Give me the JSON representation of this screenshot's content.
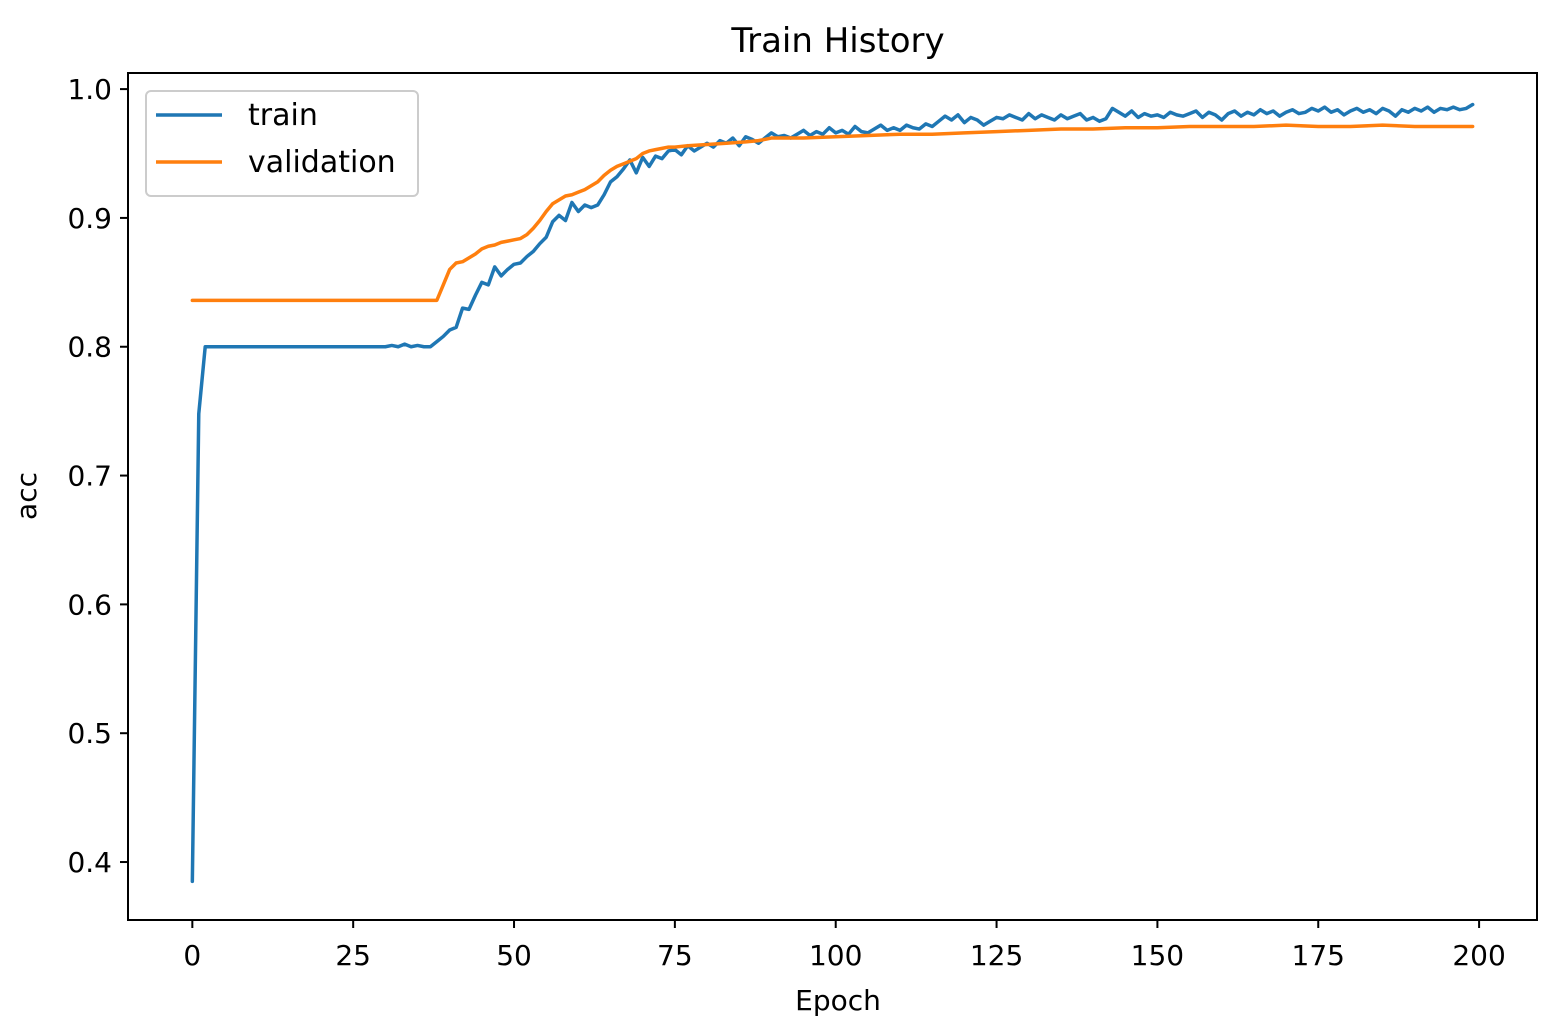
{
  "chart_data": {
    "type": "line",
    "title": "Train History",
    "xlabel": "Epoch",
    "ylabel": "acc",
    "xlim": [
      -10,
      209
    ],
    "ylim": [
      0.355,
      1.0125
    ],
    "xticks": [
      0,
      25,
      50,
      75,
      100,
      125,
      150,
      175,
      200
    ],
    "yticks": [
      0.4,
      0.5,
      0.6,
      0.7,
      0.8,
      0.9,
      1.0
    ],
    "ytick_labels": [
      "0.4",
      "0.5",
      "0.6",
      "0.7",
      "0.8",
      "0.9",
      "1.0"
    ],
    "grid": false,
    "legend_position": "top-left",
    "series": [
      {
        "name": "train",
        "color": "#1f77b4",
        "points": [
          [
            0,
            0.385
          ],
          [
            1,
            0.748
          ],
          [
            2,
            0.8
          ],
          [
            5,
            0.8
          ],
          [
            10,
            0.8
          ],
          [
            15,
            0.8
          ],
          [
            20,
            0.8
          ],
          [
            25,
            0.8
          ],
          [
            30,
            0.8
          ],
          [
            31,
            0.801
          ],
          [
            32,
            0.8
          ],
          [
            33,
            0.802
          ],
          [
            34,
            0.8
          ],
          [
            35,
            0.801
          ],
          [
            36,
            0.8
          ],
          [
            37,
            0.8
          ],
          [
            38,
            0.804
          ],
          [
            39,
            0.808
          ],
          [
            40,
            0.813
          ],
          [
            41,
            0.815
          ],
          [
            42,
            0.83
          ],
          [
            43,
            0.829
          ],
          [
            44,
            0.84
          ],
          [
            45,
            0.85
          ],
          [
            46,
            0.848
          ],
          [
            47,
            0.862
          ],
          [
            48,
            0.855
          ],
          [
            49,
            0.86
          ],
          [
            50,
            0.864
          ],
          [
            51,
            0.865
          ],
          [
            52,
            0.87
          ],
          [
            53,
            0.874
          ],
          [
            54,
            0.88
          ],
          [
            55,
            0.885
          ],
          [
            56,
            0.897
          ],
          [
            57,
            0.902
          ],
          [
            58,
            0.898
          ],
          [
            59,
            0.912
          ],
          [
            60,
            0.905
          ],
          [
            61,
            0.91
          ],
          [
            62,
            0.908
          ],
          [
            63,
            0.91
          ],
          [
            64,
            0.918
          ],
          [
            65,
            0.928
          ],
          [
            66,
            0.932
          ],
          [
            67,
            0.938
          ],
          [
            68,
            0.945
          ],
          [
            69,
            0.935
          ],
          [
            70,
            0.947
          ],
          [
            71,
            0.94
          ],
          [
            72,
            0.948
          ],
          [
            73,
            0.946
          ],
          [
            74,
            0.952
          ],
          [
            75,
            0.953
          ],
          [
            76,
            0.949
          ],
          [
            77,
            0.956
          ],
          [
            78,
            0.952
          ],
          [
            79,
            0.955
          ],
          [
            80,
            0.958
          ],
          [
            81,
            0.955
          ],
          [
            82,
            0.96
          ],
          [
            83,
            0.958
          ],
          [
            84,
            0.962
          ],
          [
            85,
            0.956
          ],
          [
            86,
            0.963
          ],
          [
            87,
            0.961
          ],
          [
            88,
            0.958
          ],
          [
            89,
            0.962
          ],
          [
            90,
            0.966
          ],
          [
            91,
            0.963
          ],
          [
            92,
            0.964
          ],
          [
            93,
            0.962
          ],
          [
            94,
            0.965
          ],
          [
            95,
            0.968
          ],
          [
            96,
            0.964
          ],
          [
            97,
            0.967
          ],
          [
            98,
            0.965
          ],
          [
            99,
            0.97
          ],
          [
            100,
            0.966
          ],
          [
            101,
            0.968
          ],
          [
            102,
            0.965
          ],
          [
            103,
            0.971
          ],
          [
            104,
            0.967
          ],
          [
            105,
            0.966
          ],
          [
            106,
            0.969
          ],
          [
            107,
            0.972
          ],
          [
            108,
            0.968
          ],
          [
            109,
            0.97
          ],
          [
            110,
            0.968
          ],
          [
            111,
            0.972
          ],
          [
            112,
            0.97
          ],
          [
            113,
            0.969
          ],
          [
            114,
            0.973
          ],
          [
            115,
            0.971
          ],
          [
            116,
            0.975
          ],
          [
            117,
            0.979
          ],
          [
            118,
            0.976
          ],
          [
            119,
            0.98
          ],
          [
            120,
            0.974
          ],
          [
            121,
            0.978
          ],
          [
            122,
            0.976
          ],
          [
            123,
            0.972
          ],
          [
            124,
            0.975
          ],
          [
            125,
            0.978
          ],
          [
            126,
            0.977
          ],
          [
            127,
            0.98
          ],
          [
            128,
            0.978
          ],
          [
            129,
            0.976
          ],
          [
            130,
            0.981
          ],
          [
            131,
            0.977
          ],
          [
            132,
            0.98
          ],
          [
            133,
            0.978
          ],
          [
            134,
            0.976
          ],
          [
            135,
            0.98
          ],
          [
            136,
            0.977
          ],
          [
            137,
            0.979
          ],
          [
            138,
            0.981
          ],
          [
            139,
            0.976
          ],
          [
            140,
            0.978
          ],
          [
            141,
            0.975
          ],
          [
            142,
            0.977
          ],
          [
            143,
            0.985
          ],
          [
            144,
            0.982
          ],
          [
            145,
            0.979
          ],
          [
            146,
            0.983
          ],
          [
            147,
            0.978
          ],
          [
            148,
            0.981
          ],
          [
            149,
            0.979
          ],
          [
            150,
            0.98
          ],
          [
            151,
            0.978
          ],
          [
            152,
            0.982
          ],
          [
            153,
            0.98
          ],
          [
            154,
            0.979
          ],
          [
            155,
            0.981
          ],
          [
            156,
            0.983
          ],
          [
            157,
            0.978
          ],
          [
            158,
            0.982
          ],
          [
            159,
            0.98
          ],
          [
            160,
            0.976
          ],
          [
            161,
            0.981
          ],
          [
            162,
            0.983
          ],
          [
            163,
            0.979
          ],
          [
            164,
            0.982
          ],
          [
            165,
            0.98
          ],
          [
            166,
            0.984
          ],
          [
            167,
            0.981
          ],
          [
            168,
            0.983
          ],
          [
            169,
            0.979
          ],
          [
            170,
            0.982
          ],
          [
            171,
            0.984
          ],
          [
            172,
            0.981
          ],
          [
            173,
            0.982
          ],
          [
            174,
            0.985
          ],
          [
            175,
            0.983
          ],
          [
            176,
            0.986
          ],
          [
            177,
            0.982
          ],
          [
            178,
            0.984
          ],
          [
            179,
            0.98
          ],
          [
            180,
            0.983
          ],
          [
            181,
            0.985
          ],
          [
            182,
            0.982
          ],
          [
            183,
            0.984
          ],
          [
            184,
            0.981
          ],
          [
            185,
            0.985
          ],
          [
            186,
            0.983
          ],
          [
            187,
            0.979
          ],
          [
            188,
            0.984
          ],
          [
            189,
            0.982
          ],
          [
            190,
            0.985
          ],
          [
            191,
            0.983
          ],
          [
            192,
            0.986
          ],
          [
            193,
            0.982
          ],
          [
            194,
            0.985
          ],
          [
            195,
            0.984
          ],
          [
            196,
            0.986
          ],
          [
            197,
            0.984
          ],
          [
            198,
            0.985
          ],
          [
            199,
            0.988
          ]
        ]
      },
      {
        "name": "validation",
        "color": "#ff7f0e",
        "points": [
          [
            0,
            0.836
          ],
          [
            10,
            0.836
          ],
          [
            20,
            0.836
          ],
          [
            30,
            0.836
          ],
          [
            37,
            0.836
          ],
          [
            38,
            0.836
          ],
          [
            39,
            0.848
          ],
          [
            40,
            0.86
          ],
          [
            41,
            0.865
          ],
          [
            42,
            0.866
          ],
          [
            43,
            0.869
          ],
          [
            44,
            0.872
          ],
          [
            45,
            0.876
          ],
          [
            46,
            0.878
          ],
          [
            47,
            0.879
          ],
          [
            48,
            0.881
          ],
          [
            49,
            0.882
          ],
          [
            50,
            0.883
          ],
          [
            51,
            0.884
          ],
          [
            52,
            0.887
          ],
          [
            53,
            0.892
          ],
          [
            54,
            0.898
          ],
          [
            55,
            0.905
          ],
          [
            56,
            0.911
          ],
          [
            57,
            0.914
          ],
          [
            58,
            0.917
          ],
          [
            59,
            0.918
          ],
          [
            60,
            0.92
          ],
          [
            61,
            0.922
          ],
          [
            62,
            0.925
          ],
          [
            63,
            0.928
          ],
          [
            64,
            0.933
          ],
          [
            65,
            0.937
          ],
          [
            66,
            0.94
          ],
          [
            67,
            0.942
          ],
          [
            68,
            0.944
          ],
          [
            69,
            0.946
          ],
          [
            70,
            0.95
          ],
          [
            71,
            0.952
          ],
          [
            72,
            0.953
          ],
          [
            73,
            0.954
          ],
          [
            74,
            0.955
          ],
          [
            75,
            0.955
          ],
          [
            77,
            0.956
          ],
          [
            80,
            0.957
          ],
          [
            83,
            0.958
          ],
          [
            86,
            0.959
          ],
          [
            88,
            0.96
          ],
          [
            90,
            0.962
          ],
          [
            95,
            0.962
          ],
          [
            100,
            0.963
          ],
          [
            105,
            0.964
          ],
          [
            110,
            0.965
          ],
          [
            115,
            0.965
          ],
          [
            120,
            0.966
          ],
          [
            125,
            0.967
          ],
          [
            130,
            0.968
          ],
          [
            135,
            0.969
          ],
          [
            140,
            0.969
          ],
          [
            145,
            0.97
          ],
          [
            150,
            0.97
          ],
          [
            155,
            0.971
          ],
          [
            160,
            0.971
          ],
          [
            165,
            0.971
          ],
          [
            170,
            0.972
          ],
          [
            175,
            0.971
          ],
          [
            180,
            0.971
          ],
          [
            185,
            0.972
          ],
          [
            190,
            0.971
          ],
          [
            195,
            0.971
          ],
          [
            199,
            0.971
          ]
        ]
      }
    ]
  }
}
